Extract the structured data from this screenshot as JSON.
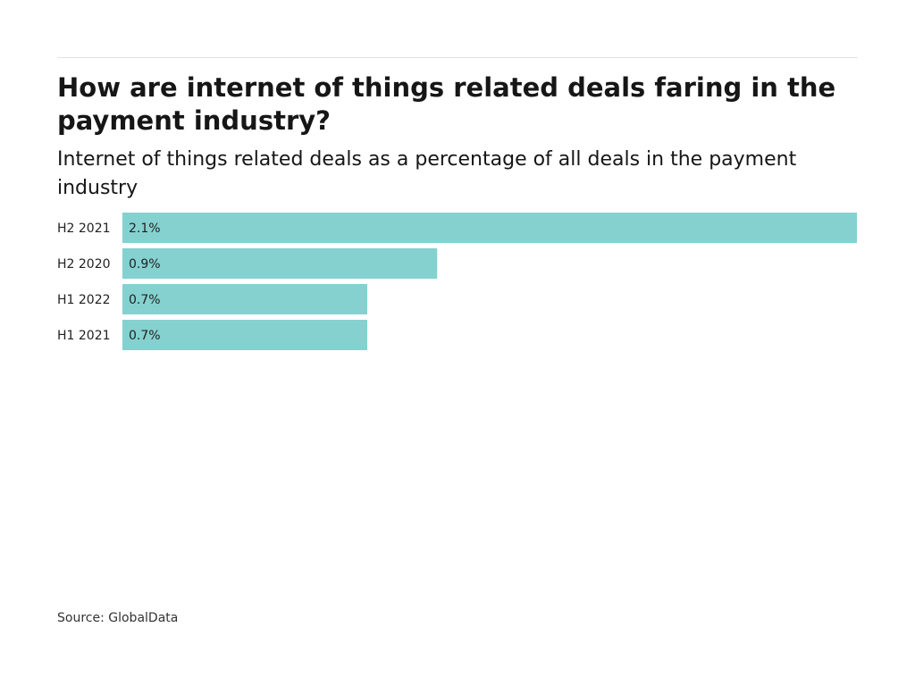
{
  "chart_data": {
    "type": "bar",
    "orientation": "horizontal",
    "title": "How are internet of things related deals faring in the payment industry?",
    "subtitle": "Internet of things related deals as a percentage of all deals in the payment industry",
    "categories": [
      "H2 2021",
      "H2 2020",
      "H1 2022",
      "H1 2021"
    ],
    "values": [
      2.1,
      0.9,
      0.7,
      0.7
    ],
    "value_labels": [
      "2.1%",
      "0.9%",
      "0.7%",
      "0.7%"
    ],
    "unit": "%",
    "xlim": [
      0,
      2.1
    ],
    "grid": false,
    "legend": "none",
    "bar_color": "#84d1d0",
    "source": "Source: GlobalData"
  }
}
